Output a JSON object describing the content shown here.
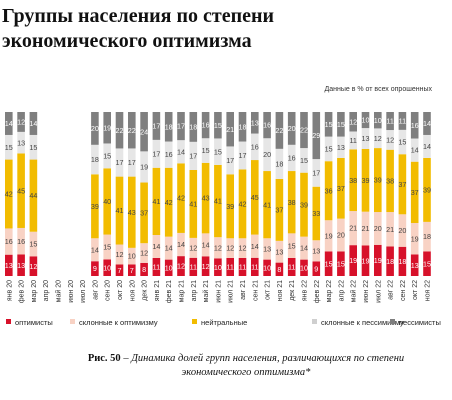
{
  "page": {
    "title": "Группы населения по степени экономического оптимизма",
    "note": "Данные в % от всех опрошенных",
    "caption_label": "Рис. 50",
    "caption_text": "– Динамика долей групп населения, различающихся по степени экономического оптимизма*"
  },
  "chart_data": {
    "type": "bar",
    "stacked": true,
    "percent_scale": true,
    "categories": [
      "янв 20",
      "фев 20",
      "мар 20",
      "апр 20",
      "май 20",
      "июн 20",
      "июл 20",
      "авг 20",
      "сен 20",
      "окт 20",
      "ноя 20",
      "дек 20",
      "янв 21",
      "фев 21",
      "мар 21",
      "апр 21",
      "май 21",
      "июн 21",
      "июл 21",
      "авг 21",
      "сен 21",
      "окт 21",
      "ноя 21",
      "дек 21",
      "янв 22",
      "фев 22",
      "мар 22",
      "апр 22",
      "май 22",
      "июн 22",
      "июл 22",
      "авг 22",
      "сен 22",
      "окт 22",
      "ноя 22"
    ],
    "series": [
      {
        "name": "оптимисты",
        "color": "#d7112a",
        "text_color": "#ffffff",
        "values": [
          13,
          13,
          12,
          null,
          null,
          null,
          null,
          9,
          10,
          7,
          7,
          8,
          11,
          10,
          12,
          11,
          12,
          10,
          11,
          11,
          11,
          10,
          8,
          11,
          10,
          9,
          15,
          15,
          19,
          19,
          19,
          18,
          18,
          13,
          15
        ]
      },
      {
        "name": "склонные к оптимизму",
        "color": "#f8d2c4",
        "text_color": "#444444",
        "values": [
          16,
          16,
          15,
          null,
          null,
          null,
          null,
          14,
          15,
          12,
          10,
          12,
          14,
          14,
          14,
          12,
          14,
          12,
          12,
          12,
          14,
          13,
          13,
          15,
          14,
          13,
          19,
          20,
          21,
          21,
          20,
          21,
          20,
          19,
          18
        ]
      },
      {
        "name": "нейтральные",
        "color": "#f2bc00",
        "text_color": "#444444",
        "values": [
          42,
          45,
          44,
          null,
          null,
          null,
          null,
          39,
          40,
          41,
          43,
          37,
          41,
          42,
          42,
          41,
          43,
          41,
          39,
          42,
          45,
          41,
          37,
          38,
          39,
          33,
          36,
          37,
          38,
          39,
          39,
          38,
          37,
          37,
          39
        ]
      },
      {
        "name": "склонные к пессимизму",
        "color": "#e6e6e6",
        "text_color": "#444444",
        "values": [
          15,
          13,
          15,
          null,
          null,
          null,
          null,
          18,
          15,
          17,
          17,
          19,
          17,
          16,
          14,
          17,
          15,
          15,
          17,
          17,
          16,
          20,
          18,
          16,
          15,
          17,
          15,
          13,
          11,
          13,
          12,
          12,
          15,
          14,
          14
        ]
      },
      {
        "name": "пессимисты",
        "color": "#7f7f7f",
        "text_color": "#ffffff",
        "values": [
          14,
          12,
          14,
          null,
          null,
          null,
          null,
          20,
          19,
          22,
          22,
          24,
          17,
          18,
          17,
          18,
          16,
          15,
          21,
          18,
          13,
          16,
          22,
          20,
          22,
          29,
          15,
          15,
          12,
          10,
          10,
          11,
          11,
          16,
          14
        ]
      }
    ]
  }
}
